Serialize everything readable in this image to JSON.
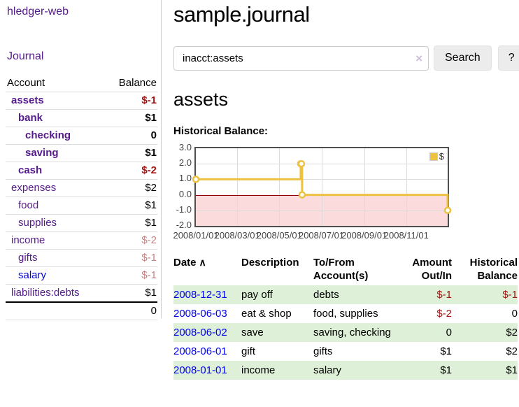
{
  "colors": {
    "link_purple": "#551a8b",
    "link_blue": "#0000ee",
    "negative": "#9e1414",
    "negative_faded": "#c58282",
    "row_stripe_green": "#dff0d8",
    "chart_line_gold": "#edc240",
    "chart_negative_fill": "#fbdbdb",
    "chart_zero_line": "#8b0000"
  },
  "sidebar": {
    "brand": "hledger-web",
    "journal_link": "Journal",
    "accounts_table": {
      "headers": [
        "Account",
        "Balance"
      ],
      "rows": [
        {
          "name": "assets",
          "indent": 1,
          "bold": true,
          "link_style": "purple",
          "balance": "$-1",
          "balance_style": "neg"
        },
        {
          "name": "bank",
          "indent": 2,
          "bold": true,
          "link_style": "purple",
          "balance": "$1",
          "balance_style": "normal"
        },
        {
          "name": "checking",
          "indent": 3,
          "bold": true,
          "link_style": "purple",
          "balance": "0",
          "balance_style": "normal"
        },
        {
          "name": "saving",
          "indent": 3,
          "bold": true,
          "link_style": "purple",
          "balance": "$1",
          "balance_style": "normal"
        },
        {
          "name": "cash",
          "indent": 2,
          "bold": true,
          "link_style": "purple",
          "balance": "$-2",
          "balance_style": "neg"
        },
        {
          "name": "expenses",
          "indent": 1,
          "bold": false,
          "link_style": "purple",
          "balance": "$2",
          "balance_style": "normal"
        },
        {
          "name": "food",
          "indent": 2,
          "bold": false,
          "link_style": "purple",
          "balance": "$1",
          "balance_style": "normal"
        },
        {
          "name": "supplies",
          "indent": 2,
          "bold": false,
          "link_style": "purple",
          "balance": "$1",
          "balance_style": "normal"
        },
        {
          "name": "income",
          "indent": 1,
          "bold": false,
          "link_style": "purple",
          "balance": "$-2",
          "balance_style": "negfade"
        },
        {
          "name": "gifts",
          "indent": 2,
          "bold": false,
          "link_style": "purple",
          "balance": "$-1",
          "balance_style": "negfade"
        },
        {
          "name": "salary",
          "indent": 2,
          "bold": false,
          "link_style": "blue",
          "balance": "$-1",
          "balance_style": "negfade"
        },
        {
          "name": "liabilities:debts",
          "indent": 1,
          "bold": false,
          "link_style": "purple",
          "balance": "$1",
          "balance_style": "normal"
        }
      ],
      "total": "0"
    }
  },
  "main": {
    "title": "sample.journal",
    "search": {
      "value": "inacct:assets",
      "clear_icon": "×",
      "search_button": "Search",
      "help_button": "?"
    },
    "account_heading": "assets",
    "transactions": {
      "sort_icon": "∧",
      "headers": [
        "Date",
        "Description",
        "To/From Account(s)",
        "Amount Out/In",
        "Historical Balance"
      ],
      "rows": [
        {
          "date": "2008-12-31",
          "description": "pay off",
          "accounts": "debts",
          "amount": "$-1",
          "amount_style": "neg",
          "balance": "$-1",
          "balance_style": "neg",
          "shaded": true
        },
        {
          "date": "2008-06-03",
          "description": "eat & shop",
          "accounts": "food, supplies",
          "amount": "$-2",
          "amount_style": "neg",
          "balance": "0",
          "balance_style": "normal",
          "shaded": false
        },
        {
          "date": "2008-06-02",
          "description": "save",
          "accounts": "saving, checking",
          "amount": "0",
          "amount_style": "normal",
          "balance": "$2",
          "balance_style": "normal",
          "shaded": true
        },
        {
          "date": "2008-06-01",
          "description": "gift",
          "accounts": "gifts",
          "amount": "$1",
          "amount_style": "normal",
          "balance": "$2",
          "balance_style": "normal",
          "shaded": false
        },
        {
          "date": "2008-01-01",
          "description": "income",
          "accounts": "salary",
          "amount": "$1",
          "amount_style": "normal",
          "balance": "$1",
          "balance_style": "normal",
          "shaded": true
        }
      ]
    }
  },
  "chart_data": {
    "type": "line",
    "title": "Historical Balance:",
    "step": true,
    "series": [
      {
        "name": "$",
        "color": "#edc240",
        "points": [
          [
            "2008-01-01",
            1
          ],
          [
            "2008-06-01",
            2
          ],
          [
            "2008-06-02",
            2
          ],
          [
            "2008-06-03",
            0
          ],
          [
            "2008-12-31",
            -1
          ]
        ]
      }
    ],
    "x_range": [
      "2008-01-01",
      "2008-12-31"
    ],
    "ylim": [
      -2,
      3
    ],
    "y_ticks": [
      "3.0",
      "2.0",
      "1.0",
      "0.0",
      "-1.0",
      "-2.0"
    ],
    "x_ticks": [
      {
        "date": "2008-01-01",
        "label": "2008/01/01"
      },
      {
        "date": "2008-03-01",
        "label": "2008/03/01"
      },
      {
        "date": "2008-05-01",
        "label": "2008/05/01"
      },
      {
        "date": "2008-07-01",
        "label": "2008/07/01"
      },
      {
        "date": "2008-09-01",
        "label": "2008/09/01"
      },
      {
        "date": "2008-11-01",
        "label": "2008/11/01"
      }
    ],
    "legend": {
      "label": "$",
      "position": "top-right"
    },
    "grid": true,
    "zero_line": true,
    "negative_region_shaded": true
  }
}
